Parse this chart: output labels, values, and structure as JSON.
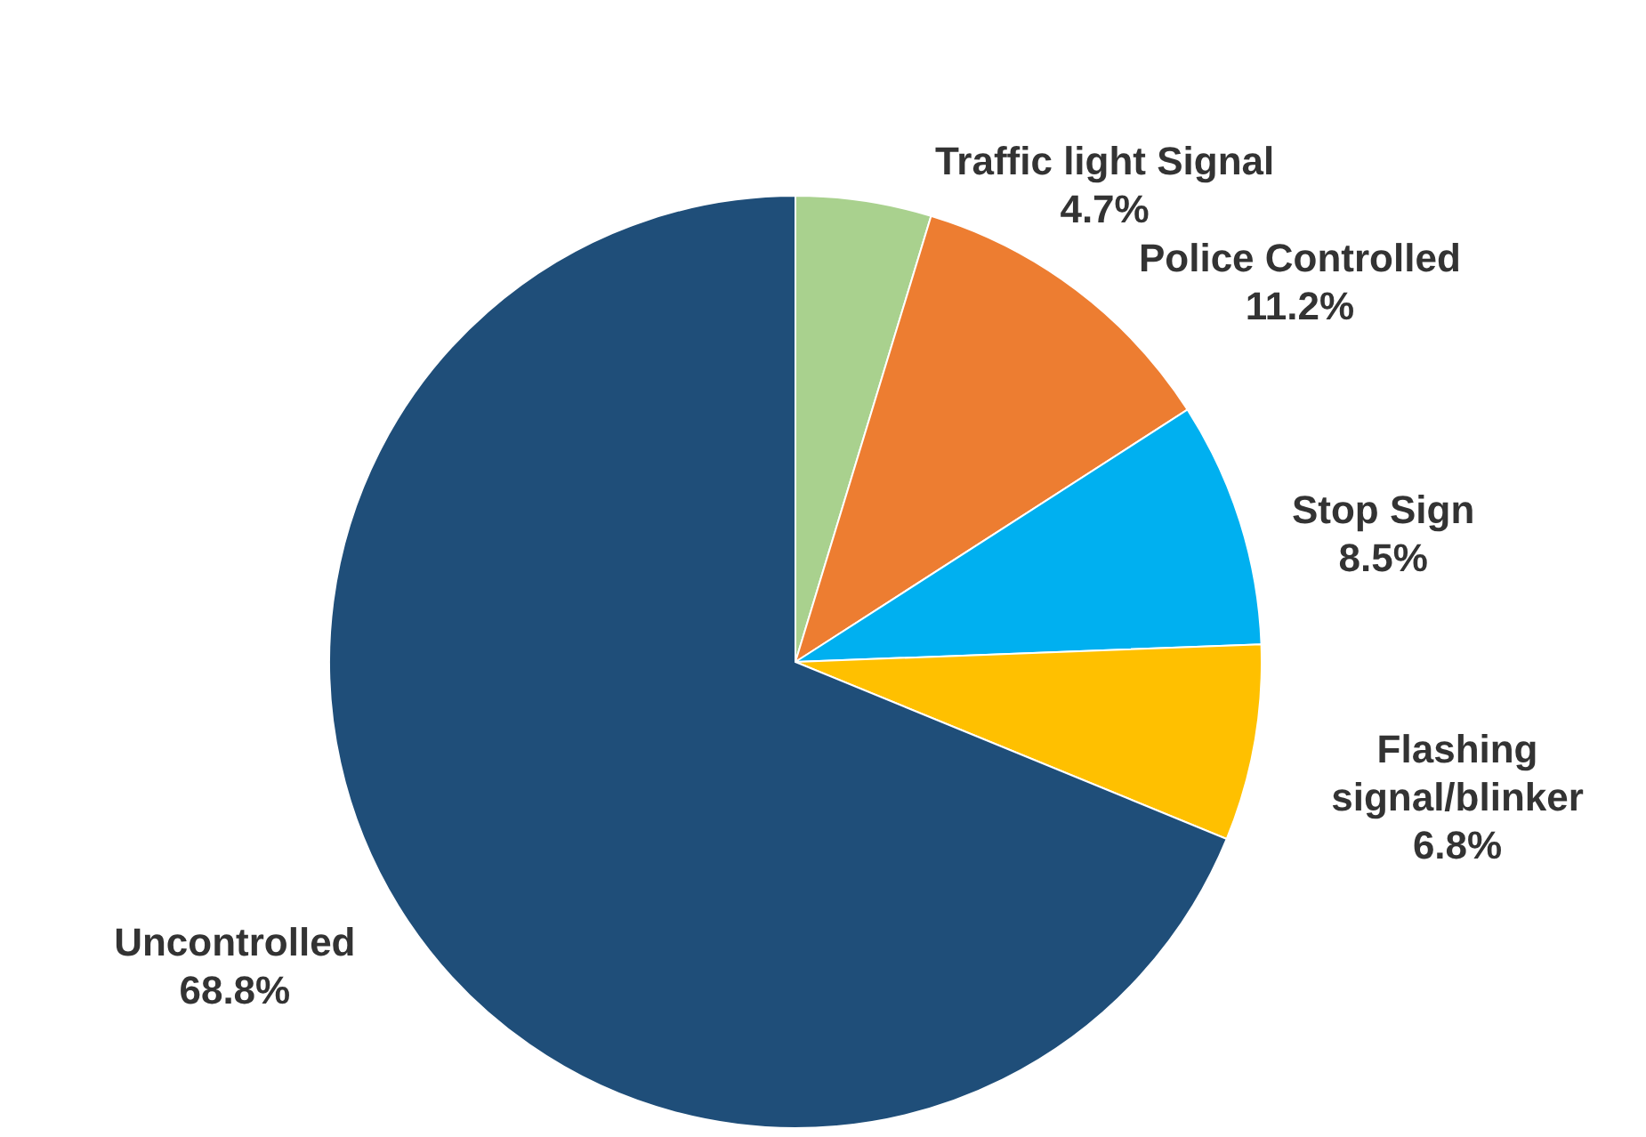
{
  "chart_data": {
    "type": "pie",
    "categories": [
      "Traffic light Signal",
      "Police Controlled",
      "Stop Sign",
      "Flashing signal/blinker",
      "Uncontrolled"
    ],
    "values": [
      4.7,
      11.2,
      8.5,
      6.8,
      68.8
    ],
    "value_labels": [
      "4.7%",
      "11.2%",
      "8.5%",
      "6.8%",
      "68.8%"
    ],
    "colors": [
      "#a9d18e",
      "#ed7d31",
      "#00b0f0",
      "#ffc000",
      "#1f4e79"
    ]
  }
}
